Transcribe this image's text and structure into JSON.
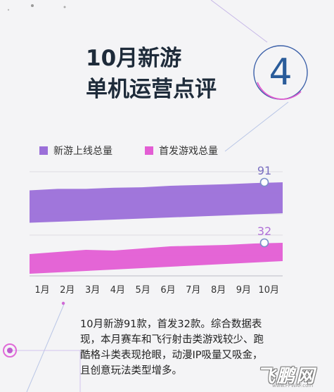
{
  "headline": {
    "line1": "10月新游",
    "line2": "单机运营点评",
    "badge_number": "4"
  },
  "legend": [
    {
      "label": "新游上线总量",
      "color": "#9b6fd9"
    },
    {
      "label": "首发游戏总量",
      "color": "#e35dd4"
    }
  ],
  "chart_data": {
    "type": "area",
    "categories": [
      "1月",
      "2月",
      "3月",
      "4月",
      "5月",
      "6月",
      "7月",
      "8月",
      "9月",
      "10月"
    ],
    "series": [
      {
        "name": "新游上线总量",
        "color": "#9b6fd9",
        "values": [
          70,
          74,
          74,
          77,
          78,
          82,
          84,
          86,
          89,
          91
        ],
        "end_label": "91"
      },
      {
        "name": "首发游戏总量",
        "color": "#e35dd4",
        "values": [
          16,
          19,
          22,
          21,
          24,
          27,
          28,
          29,
          31,
          32
        ],
        "end_label": "32"
      }
    ],
    "xlabel": "",
    "ylabel": "",
    "grid": true
  },
  "summary": {
    "lines": [
      "10月新游91款，首发32款。综合数据表",
      "现，本月赛车和飞行射击类游戏较少、跑",
      "酷格斗类表现抢眼，动漫IP吸量又吸金，",
      "且创意玩法类型增多。"
    ]
  },
  "watermark": {
    "logo_text": "飞鹏网",
    "url_text": "www.FFWAF.com"
  }
}
